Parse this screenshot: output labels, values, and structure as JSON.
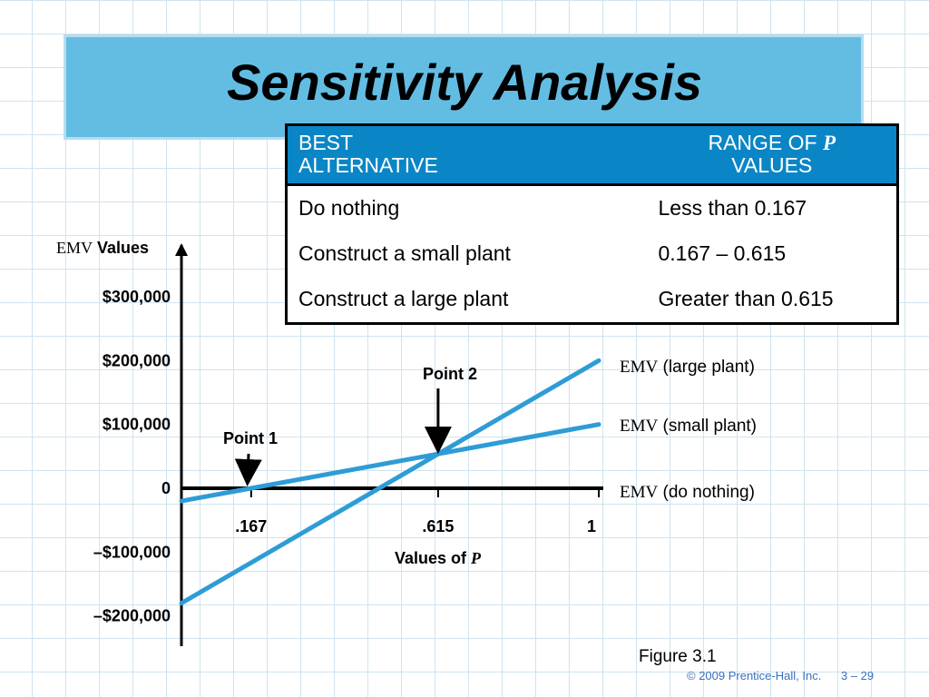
{
  "title": "Sensitivity Analysis",
  "table": {
    "header_best_line1": "BEST",
    "header_best_line2": "ALTERNATIVE",
    "header_range_line1": "RANGE OF",
    "header_range_var": "P",
    "header_range_line2": "VALUES",
    "rows": [
      {
        "alternative": "Do nothing",
        "range": "Less than 0.167"
      },
      {
        "alternative": "Construct a small plant",
        "range": "0.167 – 0.615"
      },
      {
        "alternative": "Construct a large plant",
        "range": "Greater than 0.615"
      }
    ]
  },
  "chart_data": {
    "type": "line",
    "ylabel_abbr": "EMV",
    "ylabel_text": "Values",
    "xlabel_text": "Values of",
    "xlabel_var": "P",
    "xlim": [
      0,
      1
    ],
    "ylim": [
      -200000,
      300000
    ],
    "y_ticks": [
      300000,
      200000,
      100000,
      0,
      -100000,
      -200000
    ],
    "y_tick_labels": [
      "$300,000",
      "$200,000",
      "$100,000",
      "0",
      "–$100,000",
      "–$200,000"
    ],
    "x_ticks": [
      0.167,
      0.615,
      1
    ],
    "x_tick_labels": [
      ".167",
      ".615",
      "1"
    ],
    "series": [
      {
        "name": "(large plant)",
        "x": [
          0,
          1
        ],
        "values": [
          -180000,
          200000
        ]
      },
      {
        "name": "(small plant)",
        "x": [
          0,
          1
        ],
        "values": [
          -20000,
          100000
        ]
      },
      {
        "name": "(do nothing)",
        "x": [
          0,
          1
        ],
        "values": [
          0,
          0
        ]
      }
    ],
    "series_prefix": "EMV",
    "annotations": [
      {
        "label": "Point 1",
        "x": 0.167,
        "y": 0
      },
      {
        "label": "Point 2",
        "x": 0.615,
        "y": 53800
      }
    ]
  },
  "figure_label": "Figure 3.1",
  "footer_copyright": "© 2009 Prentice-Hall, Inc.",
  "footer_page": "3 – 29",
  "colors": {
    "banner": "#63bde3",
    "table_header": "#0a86c6",
    "line": "#2e9cd6"
  }
}
